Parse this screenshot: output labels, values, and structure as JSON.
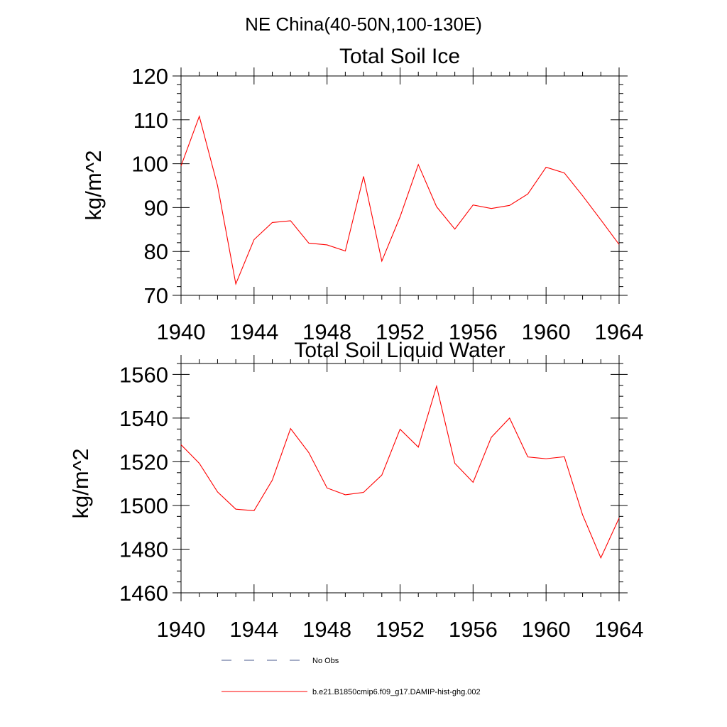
{
  "suptitle": "NE China(40-50N,100-130E)",
  "colors": {
    "model": "#ff0000",
    "obs": "#4a5a8c",
    "axes": "#000000"
  },
  "legend": {
    "obs_label": "No Obs",
    "model_label": "b.e21.B1850cmip6.f09_g17.DAMIP-hist-ghg.002"
  },
  "chart_data": [
    {
      "type": "line",
      "title": "Total Soil Ice",
      "xlabel": "",
      "ylabel": "kg/m^2",
      "xlim": [
        1940,
        1964
      ],
      "ylim": [
        70,
        120
      ],
      "xticks": [
        1940,
        1944,
        1948,
        1952,
        1956,
        1960,
        1964
      ],
      "yticks": [
        70,
        80,
        90,
        100,
        110,
        120
      ],
      "yminor_step": 2,
      "xminor_step": 1,
      "grid": false,
      "series": [
        {
          "name": "b.e21.B1850cmip6.f09_g17.DAMIP-hist-ghg.002",
          "color": "#ff0000",
          "x": [
            1940,
            1941,
            1942,
            1943,
            1944,
            1945,
            1946,
            1947,
            1948,
            1949,
            1950,
            1951,
            1952,
            1953,
            1954,
            1955,
            1956,
            1957,
            1958,
            1959,
            1960,
            1961,
            1962,
            1963,
            1964
          ],
          "y": [
            99.5,
            110.8,
            95.0,
            72.6,
            82.7,
            86.6,
            87.0,
            81.9,
            81.5,
            80.1,
            97.1,
            77.8,
            87.9,
            99.8,
            90.2,
            85.1,
            90.6,
            89.8,
            90.5,
            93.1,
            99.2,
            97.9,
            92.7,
            87.2,
            81.6
          ]
        }
      ]
    },
    {
      "type": "line",
      "title": "Total Soil Liquid Water",
      "xlabel": "",
      "ylabel": "kg/m^2",
      "xlim": [
        1940,
        1964
      ],
      "ylim": [
        1460,
        1565
      ],
      "xticks": [
        1940,
        1944,
        1948,
        1952,
        1956,
        1960,
        1964
      ],
      "yticks": [
        1460,
        1480,
        1500,
        1520,
        1540,
        1560
      ],
      "yminor_step": 5,
      "xminor_step": 1,
      "grid": false,
      "series": [
        {
          "name": "b.e21.B1850cmip6.f09_g17.DAMIP-hist-ghg.002",
          "color": "#ff0000",
          "x": [
            1940,
            1941,
            1942,
            1943,
            1944,
            1945,
            1946,
            1947,
            1948,
            1949,
            1950,
            1951,
            1952,
            1953,
            1954,
            1955,
            1956,
            1957,
            1958,
            1959,
            1960,
            1961,
            1962,
            1963,
            1964
          ],
          "y": [
            1527.8,
            1519.3,
            1506.2,
            1498.3,
            1497.6,
            1511.6,
            1535.2,
            1524.2,
            1508.0,
            1504.9,
            1506.0,
            1513.9,
            1534.9,
            1526.7,
            1554.6,
            1519.3,
            1510.6,
            1531.2,
            1540.0,
            1522.2,
            1521.4,
            1522.3,
            1495.7,
            1476.0,
            1494.2
          ]
        }
      ]
    }
  ]
}
